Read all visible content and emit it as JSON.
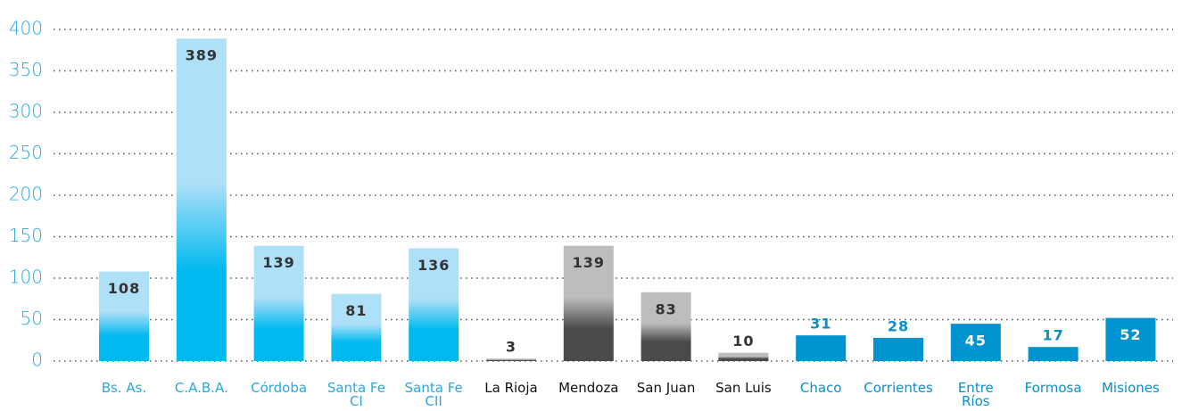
{
  "chart_data": {
    "type": "bar",
    "categories": [
      "Bs. As.",
      "C.A.B.A.",
      "Córdoba",
      "Santa Fe CI",
      "Santa Fe CII",
      "La Rioja",
      "Mendoza",
      "San Juan",
      "San Luis",
      "Chaco",
      "Corrientes",
      "Entre Ríos",
      "Formosa",
      "Misiones"
    ],
    "values": [
      108,
      389,
      139,
      81,
      136,
      3,
      139,
      83,
      10,
      31,
      28,
      45,
      17,
      52
    ],
    "colors": [
      "#00b9ef",
      "#00b9ef",
      "#00b9ef",
      "#00b9ef",
      "#00b9ef",
      "#4a4a4c",
      "#4a4a4c",
      "#4a4a4c",
      "#4a4a4c",
      "#0093cf",
      "#0093cf",
      "#0093cf",
      "#0093cf",
      "#0093cf"
    ],
    "gradient_top": [
      "#aee0f8",
      "#aee0f8",
      "#aee0f8",
      "#aee0f8",
      "#aee0f8",
      "#bdbdbf",
      "#bdbdbf",
      "#bdbdbf",
      "#bdbdbf",
      "#0093cf",
      "#0093cf",
      "#0093cf",
      "#0093cf",
      "#0093cf"
    ],
    "label_colors": [
      "#333333",
      "#333333",
      "#333333",
      "#333333",
      "#333333",
      "#333333",
      "#333333",
      "#333333",
      "#333333",
      "#ffffff",
      "#ffffff",
      "#ffffff",
      "#ffffff",
      "#ffffff"
    ],
    "category_colors": [
      "#29a8e0",
      "#29a8e0",
      "#29a8e0",
      "#29a8e0",
      "#29a8e0",
      "#111111",
      "#111111",
      "#111111",
      "#111111",
      "#0a8fca",
      "#0a8fca",
      "#0a8fca",
      "#0a8fca",
      "#0a8fca"
    ],
    "ylim": [
      0,
      400
    ],
    "yticks": [
      0,
      50,
      100,
      150,
      200,
      250,
      300,
      350,
      400
    ],
    "grid": true
  }
}
